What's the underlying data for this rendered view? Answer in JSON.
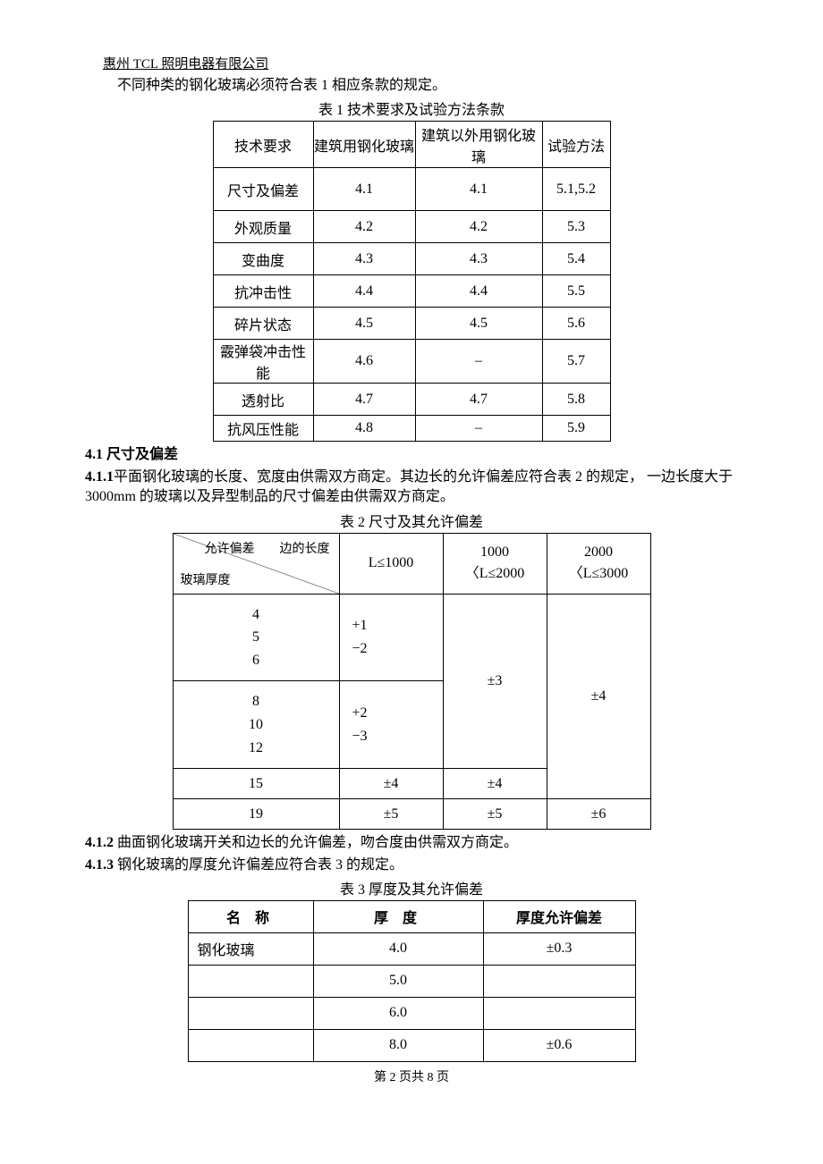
{
  "header": "惠州 TCL 照明电器有限公司",
  "intro": "不同种类的钢化玻璃必须符合表 1 相应条款的规定。",
  "table1": {
    "title": "表 1  技术要求及试验方法条款",
    "headers": [
      "技术要求",
      "建筑用钢化玻璃",
      "建筑以外用钢化玻璃",
      "试验方法"
    ],
    "rows": [
      {
        "a": "尺寸及偏差",
        "b": "4.1",
        "c": "4.1",
        "d": "5.1,5.2"
      },
      {
        "a": "外观质量",
        "b": "4.2",
        "c": "4.2",
        "d": "5.3"
      },
      {
        "a": "变曲度",
        "b": "4.3",
        "c": "4.3",
        "d": "5.4"
      },
      {
        "a": "抗冲击性",
        "b": "4.4",
        "c": "4.4",
        "d": "5.5"
      },
      {
        "a": "碎片状态",
        "b": "4.5",
        "c": "4.5",
        "d": "5.6"
      },
      {
        "a": "霰弹袋冲击性能",
        "b": "4.6",
        "c": "–",
        "d": "5.7"
      },
      {
        "a": "透射比",
        "b": "4.7",
        "c": "4.7",
        "d": "5.8"
      },
      {
        "a": "抗风压性能",
        "b": "4.8",
        "c": "–",
        "d": "5.9"
      }
    ]
  },
  "sec41_heading": "4.1 尺寸及偏差",
  "sec411_label": "4.1.1",
  "sec411_text": "平面钢化玻璃的长度、宽度由供需双方商定。其边长的允许偏差应符合表 2 的规定，  一边长度大于 3000mm 的玻璃以及异型制品的尺寸偏差由供需双方商定。",
  "table2": {
    "title": "表 2  尺寸及其允许偏差",
    "diag_top": "允许偏差　　边的长度",
    "diag_bot": "玻璃厚度",
    "col_headers": [
      "L≤1000",
      "1000\n〈L≤2000",
      "2000\n〈L≤3000"
    ],
    "r1_thick": "4\n5\n6",
    "r1_v1": "+1\n−2",
    "r2_thick": "8\n10\n12",
    "r2_v1": "+2\n−3",
    "merge_c": "±3",
    "merge_d": "±4",
    "r3": [
      "15",
      "±4",
      "±4"
    ],
    "r4": [
      "19",
      "±5",
      "±5",
      "±6"
    ]
  },
  "sec412_label": "4.1.2",
  "sec412_text": " 曲面钢化玻璃开关和边长的允许偏差，吻合度由供需双方商定。",
  "sec413_label": "4.1.3",
  "sec413_text": " 钢化玻璃的厚度允许偏差应符合表 3 的规定。",
  "table3": {
    "title": "表 3  厚度及其允许偏差",
    "headers": [
      "名 称",
      "厚 度",
      "厚度允许偏差"
    ],
    "rows": [
      {
        "a": "钢化玻璃",
        "b": "4.0",
        "c": "±0.3"
      },
      {
        "a": "",
        "b": "5.0",
        "c": ""
      },
      {
        "a": "",
        "b": "6.0",
        "c": ""
      },
      {
        "a": "",
        "b": "8.0",
        "c": "±0.6"
      }
    ]
  },
  "footer": "第 2 页共 8 页"
}
